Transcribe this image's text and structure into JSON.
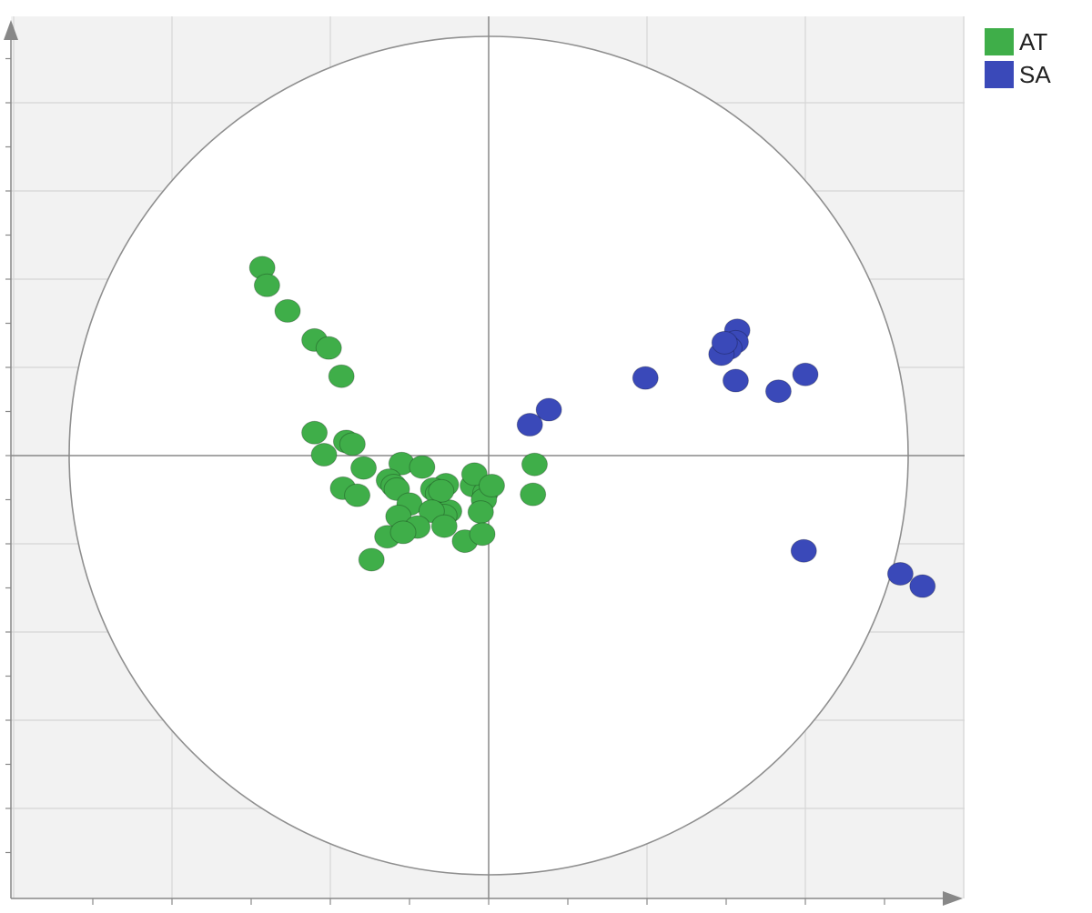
{
  "chart_data": {
    "type": "scatter",
    "title": "",
    "xlabel": "",
    "ylabel": "",
    "xlim": [
      -3.0,
      3.0
    ],
    "ylim": [
      -2.5,
      2.5
    ],
    "grid": true,
    "correlation_circle": true,
    "legend_position": "top-right",
    "series": [
      {
        "name": "AT",
        "color": "#3fae49",
        "x": [
          -1.43,
          -1.4,
          -1.27,
          -1.1,
          -1.01,
          -0.93,
          -1.1,
          -0.9,
          -0.86,
          -1.04,
          -0.79,
          -0.55,
          -0.42,
          -0.63,
          -0.6,
          -0.27,
          -0.35,
          -0.32,
          -0.1,
          -0.02,
          -0.03,
          -0.09,
          0.02,
          0.29,
          0.28,
          -0.92,
          -0.83,
          -0.58,
          -0.5,
          -0.25,
          -0.3,
          -0.28,
          -0.36,
          -0.05,
          -0.57,
          -0.45,
          -0.28,
          -0.15,
          -0.04,
          -0.64,
          -0.54,
          -0.74
        ],
        "y": [
          2.13,
          1.93,
          1.64,
          1.31,
          1.22,
          0.9,
          0.26,
          0.16,
          0.13,
          0.01,
          -0.14,
          -0.09,
          -0.13,
          -0.28,
          -0.34,
          -0.33,
          -0.38,
          -0.43,
          -0.34,
          -0.42,
          -0.5,
          -0.21,
          -0.34,
          -0.1,
          -0.44,
          -0.37,
          -0.45,
          -0.38,
          -0.55,
          -0.63,
          -0.4,
          -0.68,
          -0.63,
          -0.64,
          -0.69,
          -0.81,
          -0.8,
          -0.97,
          -0.89,
          -0.92,
          -0.87,
          -1.18
        ]
      },
      {
        "name": "SA",
        "color": "#3a49b9",
        "x": [
          1.57,
          1.56,
          1.52,
          1.47,
          1.49,
          0.99,
          1.56,
          1.83,
          2.0,
          0.38,
          0.26,
          1.99,
          2.6,
          2.74
        ],
        "y": [
          1.42,
          1.29,
          1.22,
          1.15,
          1.28,
          0.88,
          0.85,
          0.73,
          0.92,
          0.52,
          0.35,
          -1.08,
          -1.34,
          -1.48
        ]
      }
    ]
  }
}
